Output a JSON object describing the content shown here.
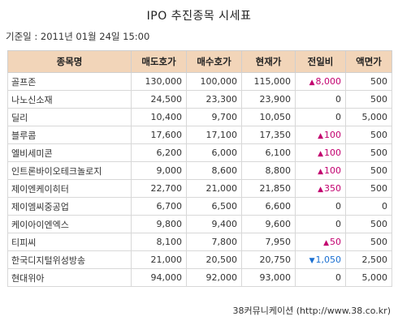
{
  "title": "IPO 추진종목 시세표",
  "base_date": "기준일 : 2011년 01월 24일 15:00",
  "headers": [
    "종목명",
    "매도호가",
    "매수호가",
    "현재가",
    "전일비",
    "액면가"
  ],
  "rows": [
    {
      "name": "골프존",
      "ask": "130,000",
      "bid": "100,000",
      "current": "115,000",
      "change": "8,000",
      "dir": "up",
      "face": "500"
    },
    {
      "name": "나노신소재",
      "ask": "24,500",
      "bid": "23,300",
      "current": "23,900",
      "change": "0",
      "dir": "flat",
      "face": "500"
    },
    {
      "name": "딜리",
      "ask": "10,400",
      "bid": "9,700",
      "current": "10,050",
      "change": "0",
      "dir": "flat",
      "face": "5,000"
    },
    {
      "name": "블루콤",
      "ask": "17,600",
      "bid": "17,100",
      "current": "17,350",
      "change": "100",
      "dir": "up",
      "face": "500"
    },
    {
      "name": "엘비세미콘",
      "ask": "6,200",
      "bid": "6,000",
      "current": "6,100",
      "change": "100",
      "dir": "up",
      "face": "500"
    },
    {
      "name": "인트론바이오테크놀로지",
      "ask": "9,000",
      "bid": "8,600",
      "current": "8,800",
      "change": "100",
      "dir": "up",
      "face": "500"
    },
    {
      "name": "제이엔케이히터",
      "ask": "22,700",
      "bid": "21,000",
      "current": "21,850",
      "change": "350",
      "dir": "up",
      "face": "500"
    },
    {
      "name": "제이엠씨중공업",
      "ask": "6,700",
      "bid": "6,500",
      "current": "6,600",
      "change": "0",
      "dir": "flat",
      "face": "0"
    },
    {
      "name": "케이아이엔엑스",
      "ask": "9,800",
      "bid": "9,400",
      "current": "9,600",
      "change": "0",
      "dir": "flat",
      "face": "500"
    },
    {
      "name": "티피씨",
      "ask": "8,100",
      "bid": "7,800",
      "current": "7,950",
      "change": "50",
      "dir": "up",
      "face": "500"
    },
    {
      "name": "한국디지털위성방송",
      "ask": "21,000",
      "bid": "20,500",
      "current": "20,750",
      "change": "1,050",
      "dir": "down",
      "face": "2,500"
    },
    {
      "name": "현대위아",
      "ask": "94,000",
      "bid": "92,000",
      "current": "93,000",
      "change": "0",
      "dir": "flat",
      "face": "5,000"
    }
  ],
  "arrows": {
    "up": "▲",
    "down": "▼",
    "flat": ""
  },
  "colors": {
    "header_bg": "#f2d5b9",
    "up": "#c2006f",
    "down": "#1a6fd1"
  },
  "footer": "38커뮤니케이션 (http://www.38.co.kr)"
}
